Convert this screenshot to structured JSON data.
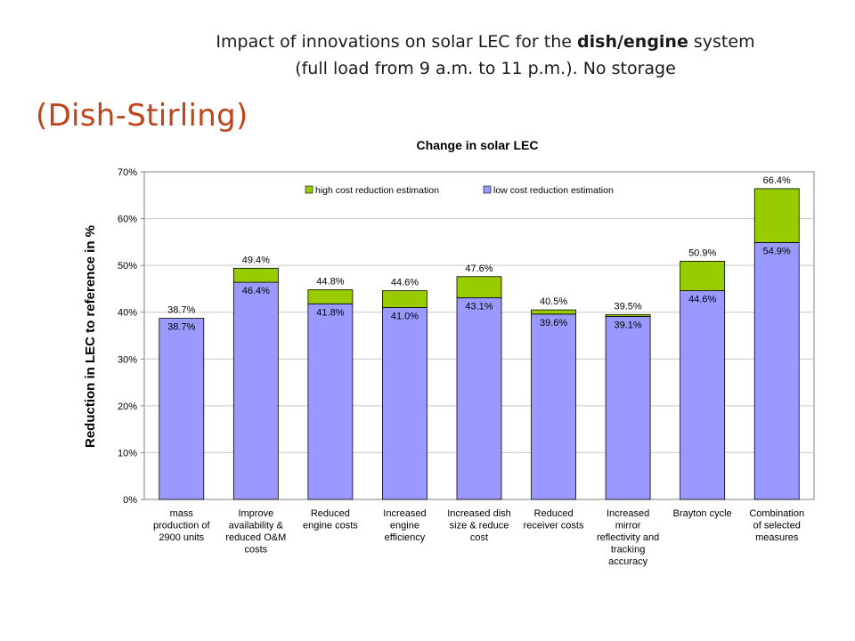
{
  "slide": {
    "title_line1_pre": "Impact of innovations on solar LEC for the ",
    "title_line1_bold": "dish/engine",
    "title_line1_post": " system",
    "title_line2": "(full load from 9 a.m. to 11 p.m.). No storage",
    "subtitle": "(Dish-Stirling)"
  },
  "chart_data": {
    "type": "bar",
    "stacked": true,
    "title": "Change in solar LEC",
    "xlabel": "",
    "ylabel": "Reduction in LEC to reference in %",
    "ylim": [
      0,
      70
    ],
    "yticks": [
      0,
      10,
      20,
      30,
      40,
      50,
      60,
      70
    ],
    "ytick_labels": [
      "0%",
      "10%",
      "20%",
      "30%",
      "40%",
      "50%",
      "60%",
      "70%"
    ],
    "grid": true,
    "legend_position": "top",
    "categories": [
      [
        "mass",
        "production of",
        "2900 units"
      ],
      [
        "Improve",
        "availability &",
        "reduced O&M",
        "costs"
      ],
      [
        "Reduced",
        "engine costs"
      ],
      [
        "Increased",
        "engine",
        "efficiency"
      ],
      [
        "Increased dish",
        "size & reduce",
        "cost"
      ],
      [
        "Reduced",
        "receiver costs"
      ],
      [
        "Increased",
        "mirror",
        "reflectivity and",
        "tracking",
        "accuracy"
      ],
      [
        "Brayton cycle"
      ],
      [
        "Combination",
        "of selected",
        "measures"
      ]
    ],
    "series": [
      {
        "name": "low cost reduction estimation",
        "color": "#9999ff",
        "values": [
          38.7,
          46.4,
          41.8,
          41.0,
          43.1,
          39.6,
          39.1,
          44.6,
          54.9
        ],
        "labels": [
          "38.7%",
          "46.4%",
          "41.8%",
          "41.0%",
          "43.1%",
          "39.6%",
          "39.1%",
          "44.6%",
          "54.9%"
        ]
      },
      {
        "name": "high cost reduction estimation",
        "color": "#99cc00",
        "totals": [
          38.7,
          49.4,
          44.8,
          44.6,
          47.6,
          40.5,
          39.5,
          50.9,
          66.4
        ],
        "labels": [
          "38.7%",
          "49.4%",
          "44.8%",
          "44.6%",
          "47.6%",
          "40.5%",
          "39.5%",
          "50.9%",
          "66.4%"
        ]
      }
    ]
  }
}
